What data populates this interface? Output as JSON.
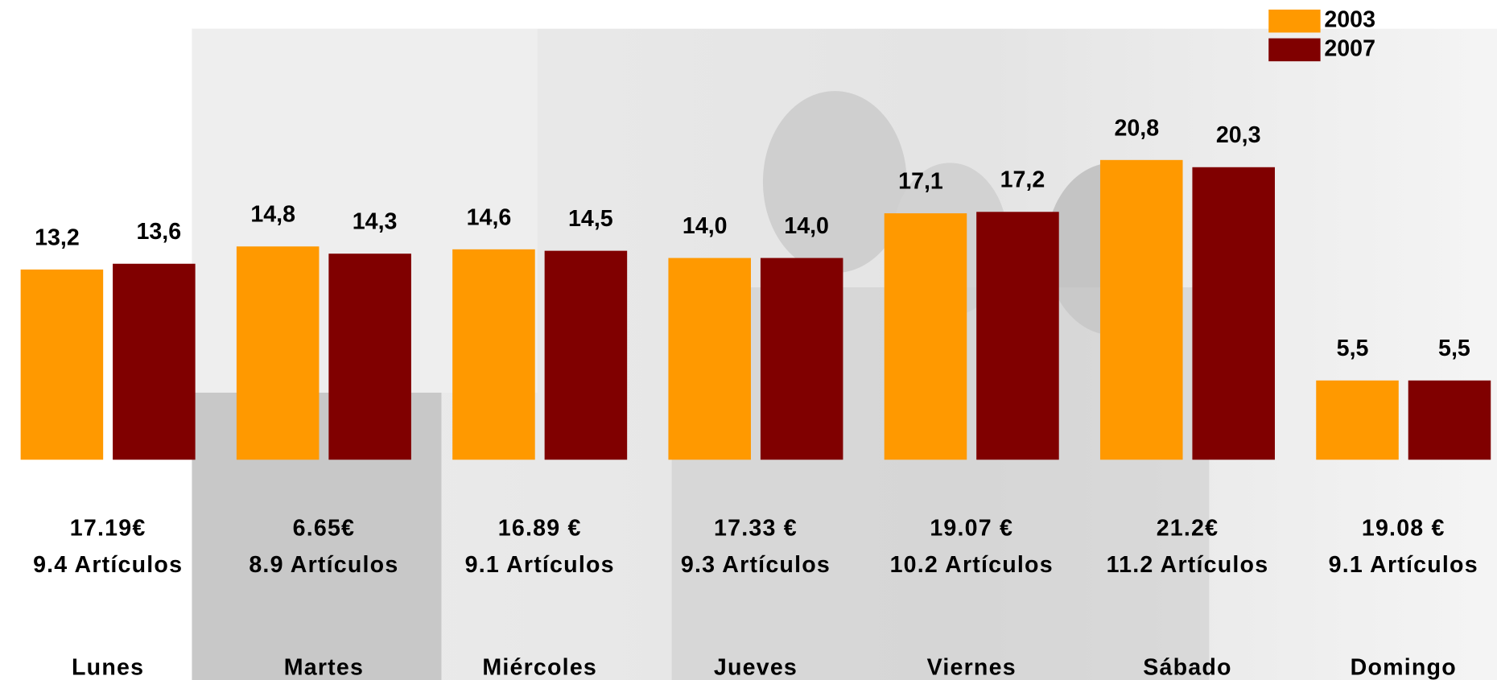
{
  "chart_data": {
    "type": "bar",
    "categories": [
      "Lunes",
      "Martes",
      "Miércoles",
      "Jueves",
      "Viernes",
      "Sábado",
      "Domingo"
    ],
    "series": [
      {
        "name": "2003",
        "color": "#ff9900",
        "values": [
          13.2,
          14.8,
          14.6,
          14.0,
          17.1,
          20.8,
          5.5
        ],
        "value_labels": [
          "13,2",
          "14,8",
          "14,6",
          "14,0",
          "17,1",
          "20,8",
          "5,5"
        ]
      },
      {
        "name": "2007",
        "color": "#800000",
        "values": [
          13.6,
          14.3,
          14.5,
          14.0,
          17.2,
          20.3,
          5.5
        ],
        "value_labels": [
          "13,6",
          "14,3",
          "14,5",
          "14,0",
          "17,2",
          "20,3",
          "5,5"
        ]
      }
    ],
    "spend_labels": [
      "17.19€",
      "6.65€",
      "16.89 €",
      "17.33 €",
      "19.07 €",
      "21.2€",
      "19.08 €"
    ],
    "item_labels": [
      "9.4 Artículos",
      "8.9 Artículos",
      "9.1 Artículos",
      "9.3 Artículos",
      "10.2 Artículos",
      "11.2 Artículos",
      "9.1 Artículos"
    ],
    "ylim": [
      0,
      22
    ],
    "legend": "top-right"
  }
}
